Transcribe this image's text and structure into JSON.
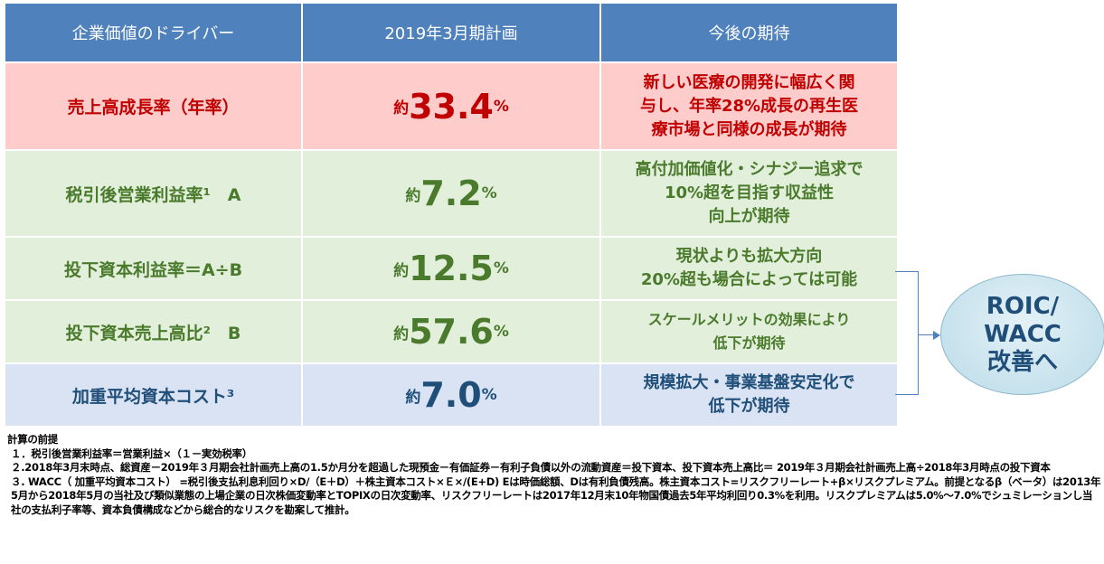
{
  "table": {
    "headers": [
      "企業価値のドライバー",
      "2019年3月期計画",
      "今後の期待"
    ],
    "rows": [
      {
        "label": "売上高成長率（年率）",
        "prefix": "約",
        "value": "33.4",
        "unit": "%",
        "expectation": [
          "新しい医療の開発に幅広く関",
          "与し、年率28%成長の再生医",
          "療市場と同様の成長が期待"
        ]
      },
      {
        "label": "税引後営業利益率¹　A",
        "prefix": "約",
        "value": "7.2",
        "unit": "%",
        "expectation": [
          "高付加価値化・シナジー追求で",
          "10%超を目指す収益性",
          "向上が期待"
        ]
      },
      {
        "label": "投下資本利益率＝A÷B",
        "prefix": "約",
        "value": "12.5",
        "unit": "%",
        "expectation": [
          "現状よりも拡大方向",
          "20%超も場合によっては可能"
        ]
      },
      {
        "label": "投下資本売上高比²　B",
        "prefix": "約",
        "value": "57.6",
        "unit": "%",
        "expectation": [
          "スケールメリットの効果により",
          "低下が期待"
        ]
      },
      {
        "label": "加重平均資本コスト³",
        "prefix": "約",
        "value": "7.0",
        "unit": "%",
        "expectation": [
          "規模拡大・事業基盤安定化で",
          "低下が期待"
        ]
      }
    ]
  },
  "callout": [
    "ROIC/",
    "WACC",
    "改善へ"
  ],
  "notes": {
    "title": "計算の前提",
    "items": [
      "１．税引後営業利益率＝営業利益×（１－実効税率）",
      "２.2018年3月末時点、総資産－2019年３月期会社計画売上高の1.5か月分を超過した現預金－有価証券－有利子負債以外の流動資産＝投下資本、投下資本売上高比＝ 2019年３月期会社計画売上高÷2018年3月時点の投下資本",
      "３. WACC（ 加重平均資本コスト） =税引後支払利息利回り×D/（E＋D）＋株主資本コスト×Ｅ×/(E+D) Eは時価総額、Dは有利負債残高。株主資本コスト=リスクフリーレート+β×リスクプレミアム。前提となるβ（ベータ）は2013年5月から2018年5月の当社及び類似業態の上場企業の日次株価変動率とTOPIXの日次変動率、リスクフリーレートは2017年12月末10年物国債過去5年平均利回り0.3%を利用。リスクプレミアムは5.0%～7.0%でシュミレーションし当社の支払利子率等、資本負債構成などから総合的なリスクを勘案して推計。"
    ]
  },
  "colors": {
    "header": "#4f81bd",
    "row_growth": "#ffcccc",
    "row_margin": "#e2efda",
    "row_wacc": "#dae3f3",
    "text_red": "#c00000",
    "text_green": "#4a7a2c",
    "text_navy": "#1f4e79"
  }
}
